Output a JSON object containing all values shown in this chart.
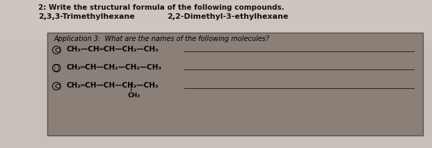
{
  "bg_color": "#c8c0b8",
  "top_bg_color": "#d8d0c8",
  "box_color": "#7a7068",
  "box_edge_color": "#555050",
  "title_line1": "2: Write the structural formula of the following compounds.",
  "title_line2_left": "2,3,3-Trimethylhexane",
  "title_line2_right": "2,2-Dimethyl-3-ethylhexane",
  "app_title": "Application 3:  What are the names of the following molecules?",
  "item1_num": "c)",
  "item1_text": "CH₃—CH═CH—CH₂—CH₃",
  "item2_num": "ⓑ)",
  "item2_text": "CH₂═CH—CH₂—CH₂—CH₃",
  "item3_num": "c)",
  "item3_text": "CH₂═CH—CH—CH₂—CH₃",
  "item3_sub": "CH₃",
  "line_color": "#222222",
  "text_color": "#111111",
  "font_size_title": 7.5,
  "font_size_names": 8.0,
  "font_size_app": 7.0,
  "font_size_items": 7.5
}
